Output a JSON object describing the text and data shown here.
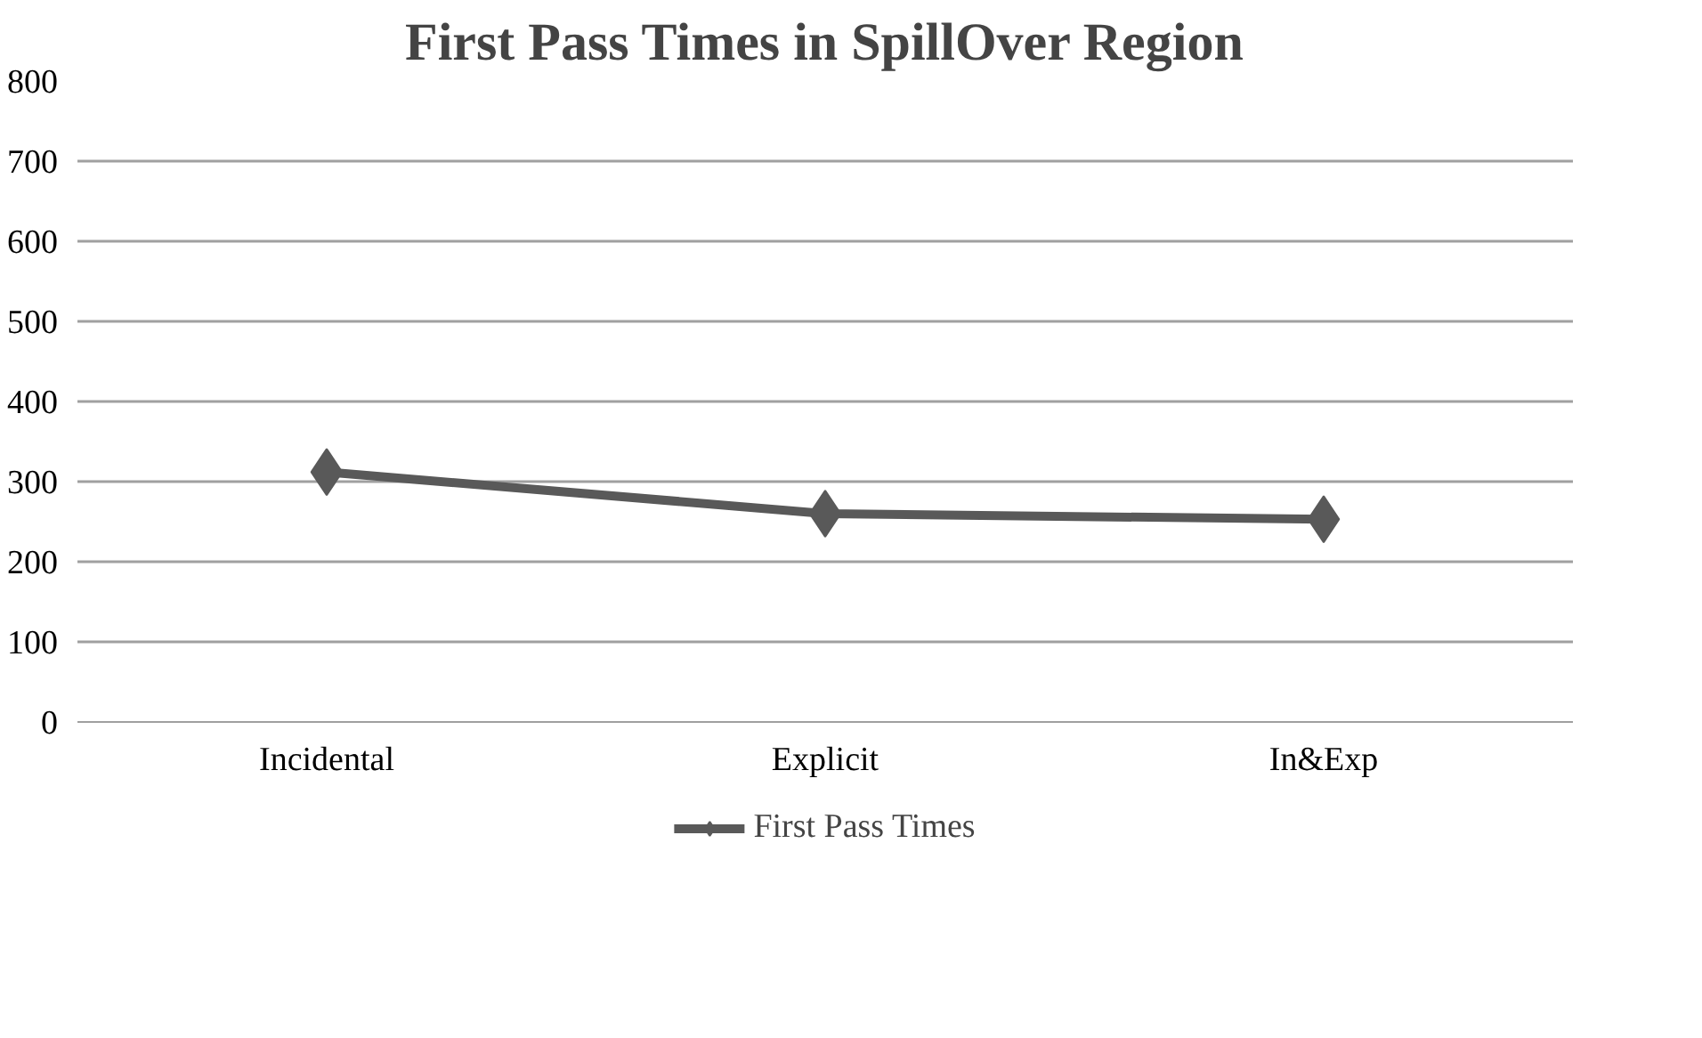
{
  "chart_data": {
    "type": "line",
    "title": "First Pass Times in SpillOver Region",
    "categories": [
      "Incidental",
      "Explicit",
      "In&Exp"
    ],
    "series": [
      {
        "name": "First Pass Times",
        "color": "#595959",
        "values": [
          312,
          260,
          253
        ]
      }
    ],
    "ylim": [
      0,
      800
    ],
    "yticks": [
      0,
      100,
      200,
      300,
      400,
      500,
      600,
      700,
      800
    ],
    "grid": "y",
    "legend": "bottom",
    "marker": "diamond",
    "line_style": "solid"
  }
}
